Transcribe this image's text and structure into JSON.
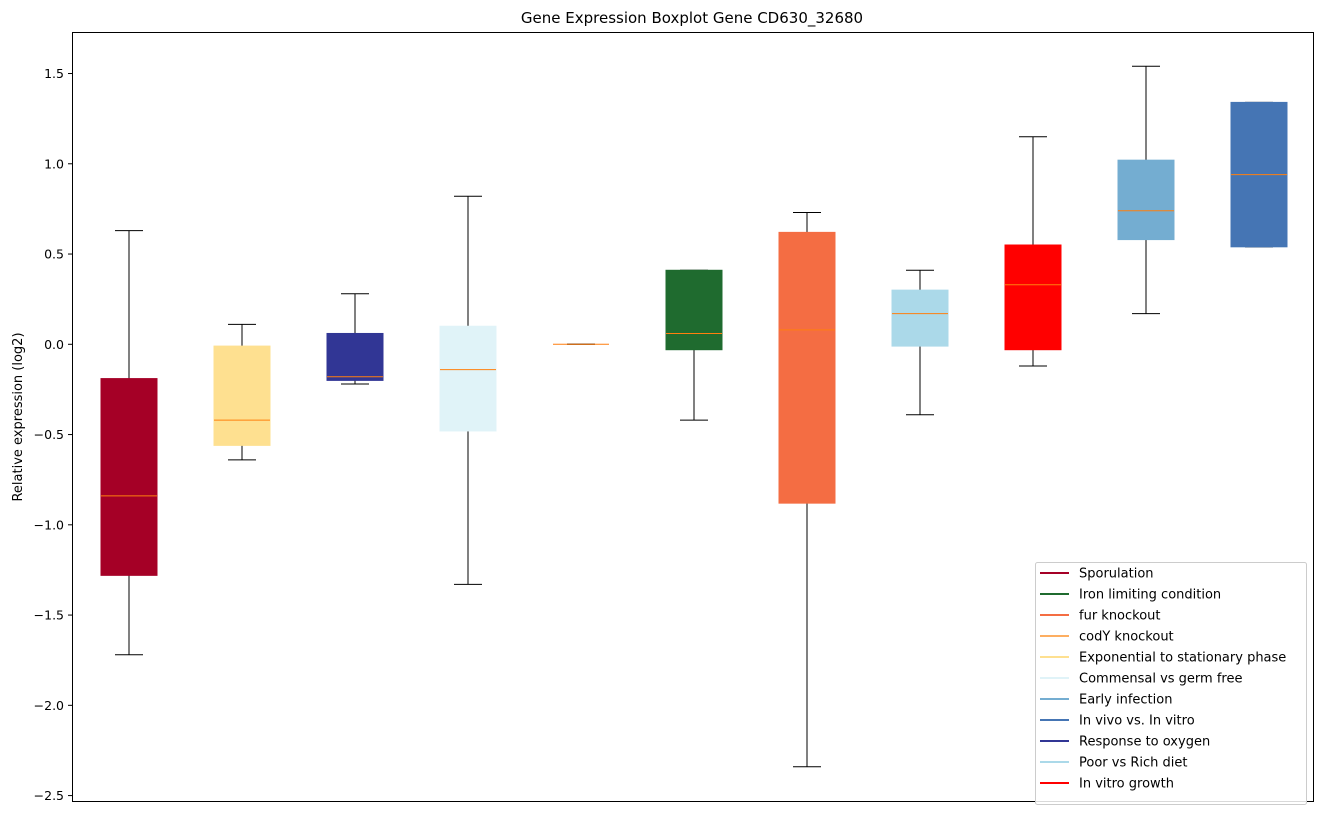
{
  "chart_data": {
    "type": "boxplot",
    "title": "Gene Expression Boxplot Gene CD630_32680",
    "xlabel": "",
    "ylabel": "Relative expression (log2)",
    "ylim": [
      -2.53,
      1.73
    ],
    "yticks": [
      -2.5,
      -2.0,
      -1.5,
      -1.0,
      -0.5,
      0.0,
      0.5,
      1.0,
      1.5
    ],
    "ytick_labels": [
      "−2.5",
      "−2.0",
      "−1.5",
      "−1.0",
      "−0.5",
      "0.0",
      "0.5",
      "1.0",
      "1.5"
    ],
    "xticks_visible": false,
    "grid": false,
    "median_color": "#ff7f0e",
    "legend_position": "lower-right",
    "boxes": [
      {
        "color": "#a50026",
        "whisker_low": -1.72,
        "q1": -1.28,
        "median": -0.84,
        "q3": -0.19,
        "whisker_high": 0.63
      },
      {
        "color": "#fee090",
        "whisker_low": -0.64,
        "q1": -0.56,
        "median": -0.42,
        "q3": -0.01,
        "whisker_high": 0.11
      },
      {
        "color": "#313695",
        "whisker_low": -0.22,
        "q1": -0.2,
        "median": -0.18,
        "q3": 0.06,
        "whisker_high": 0.28
      },
      {
        "color": "#e0f3f8",
        "whisker_low": -1.33,
        "q1": -0.48,
        "median": -0.14,
        "q3": 0.1,
        "whisker_high": 0.82
      },
      {
        "color": "#fdae61",
        "whisker_low": 0.0,
        "q1": 0.0,
        "median": 0.0,
        "q3": 0.0,
        "whisker_high": 0.0
      },
      {
        "color": "#1f6b2f",
        "whisker_low": -0.42,
        "q1": -0.03,
        "median": 0.06,
        "q3": 0.41,
        "whisker_high": 0.41
      },
      {
        "color": "#f46d43",
        "whisker_low": -2.34,
        "q1": -0.88,
        "median": 0.08,
        "q3": 0.62,
        "whisker_high": 0.73
      },
      {
        "color": "#abd9e9",
        "whisker_low": -0.39,
        "q1": -0.01,
        "median": 0.17,
        "q3": 0.3,
        "whisker_high": 0.41
      },
      {
        "color": "#ff0000",
        "whisker_low": -0.12,
        "q1": -0.03,
        "median": 0.33,
        "q3": 0.55,
        "whisker_high": 1.15
      },
      {
        "color": "#74add1",
        "whisker_low": 0.17,
        "q1": 0.58,
        "median": 0.74,
        "q3": 1.02,
        "whisker_high": 1.54
      },
      {
        "color": "#4575b4",
        "whisker_low": 0.54,
        "q1": 0.54,
        "median": 0.94,
        "q3": 1.34,
        "whisker_high": 1.34
      }
    ],
    "legend": [
      {
        "label": "Sporulation",
        "color": "#a50026"
      },
      {
        "label": "Iron limiting condition",
        "color": "#1f6b2f"
      },
      {
        "label": "fur knockout",
        "color": "#f46d43"
      },
      {
        "label": "codY knockout",
        "color": "#fdae61"
      },
      {
        "label": "Exponential to stationary phase",
        "color": "#fee090"
      },
      {
        "label": "Commensal vs germ free",
        "color": "#e0f3f8"
      },
      {
        "label": "Early infection",
        "color": "#74add1"
      },
      {
        "label": "In vivo vs. In vitro",
        "color": "#4575b4"
      },
      {
        "label": "Response to oxygen",
        "color": "#313695"
      },
      {
        "label": "Poor vs Rich diet",
        "color": "#abd9e9"
      },
      {
        "label": "In vitro growth",
        "color": "#ff0000"
      }
    ]
  }
}
